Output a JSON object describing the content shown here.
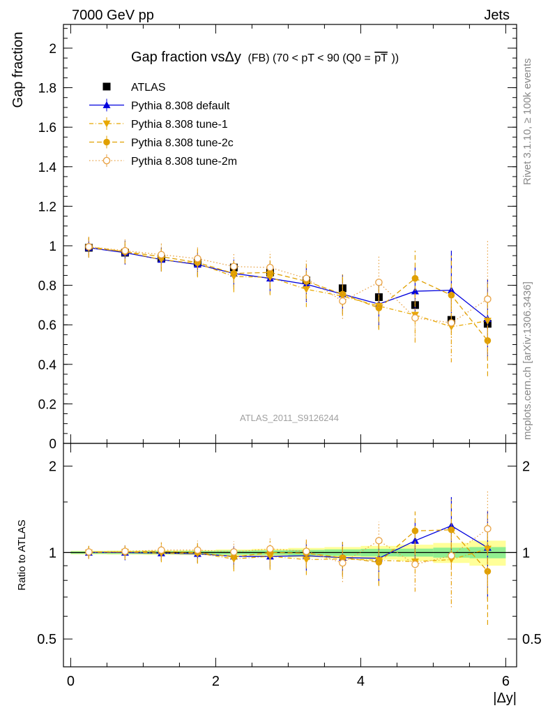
{
  "header": {
    "energy_label": "7000 GeV pp",
    "process_label": "Jets"
  },
  "side_labels": {
    "rivet": "Rivet 3.1.10, ≥ 100k events",
    "mcplots": "mcplots.cern.ch [arXiv:1306.3436]"
  },
  "watermark": "ATLAS_2011_S9126244",
  "chart_data": [
    {
      "type": "scatter",
      "panel": "main",
      "title": "Gap fraction vsΔy",
      "title_suffix": "(FB) (70 < pT <  90 (Q0 =",
      "title_overlined": "pT",
      "title_close": "))",
      "ylabel": "Gap fraction",
      "xlim": [
        -0.1,
        6.15
      ],
      "ylim": [
        0,
        2.12
      ],
      "yticks": [
        "0",
        "0.2",
        "0.4",
        "0.6",
        "0.8",
        "1",
        "1.2",
        "1.4",
        "1.6",
        "1.8",
        "2"
      ],
      "x": [
        0.25,
        0.75,
        1.25,
        1.75,
        2.25,
        2.75,
        3.25,
        3.75,
        4.25,
        4.75,
        5.25,
        5.75
      ],
      "series": [
        {
          "name": "ATLAS",
          "color": "#000000",
          "marker": "square",
          "values": [
            0.99,
            0.965,
            0.935,
            0.915,
            0.89,
            0.865,
            0.825,
            0.785,
            0.74,
            0.7,
            0.625,
            0.605
          ],
          "errors": [
            0.01,
            0.01,
            0.01,
            0.012,
            0.014,
            0.016,
            0.018,
            0.02,
            0.02,
            0.022,
            0.022,
            0.025
          ]
        },
        {
          "name": "Pythia 8.308 default",
          "color": "#0000dd",
          "marker": "triangle-up",
          "line": "solid",
          "values": [
            0.99,
            0.965,
            0.93,
            0.905,
            0.86,
            0.835,
            0.805,
            0.755,
            0.705,
            0.77,
            0.775,
            0.63
          ],
          "errors": [
            0.05,
            0.06,
            0.06,
            0.06,
            0.07,
            0.08,
            0.09,
            0.1,
            0.12,
            0.12,
            0.2,
            0.2
          ]
        },
        {
          "name": "Pythia 8.308 tune-1",
          "color": "#e8a800",
          "marker": "triangle-down",
          "line": "dashdot",
          "values": [
            0.99,
            0.97,
            0.93,
            0.91,
            0.845,
            0.84,
            0.78,
            0.745,
            0.695,
            0.65,
            0.59,
            0.62
          ],
          "errors": [
            0.05,
            0.06,
            0.06,
            0.07,
            0.08,
            0.09,
            0.09,
            0.1,
            0.12,
            0.14,
            0.18,
            0.2
          ]
        },
        {
          "name": "Pythia 8.308 tune-2c",
          "color": "#e0a000",
          "marker": "circle",
          "line": "dashed",
          "values": [
            0.995,
            0.97,
            0.945,
            0.915,
            0.86,
            0.865,
            0.82,
            0.755,
            0.685,
            0.835,
            0.75,
            0.52
          ],
          "errors": [
            0.05,
            0.06,
            0.06,
            0.07,
            0.08,
            0.08,
            0.09,
            0.1,
            0.11,
            0.14,
            0.2,
            0.18
          ]
        },
        {
          "name": "Pythia 8.308 tune-2m",
          "color": "#e8a040",
          "marker": "circle-open",
          "line": "dotted",
          "values": [
            0.995,
            0.975,
            0.955,
            0.935,
            0.895,
            0.89,
            0.835,
            0.72,
            0.815,
            0.635,
            0.61,
            0.73
          ],
          "errors": [
            0.05,
            0.06,
            0.06,
            0.06,
            0.07,
            0.08,
            0.09,
            0.09,
            0.13,
            0.12,
            0.2,
            0.3
          ]
        }
      ]
    },
    {
      "type": "scatter",
      "panel": "ratio",
      "ylabel": "Ratio to ATLAS",
      "xlabel": "|Δy|",
      "yscale": "log",
      "ylim": [
        0.4,
        2.4
      ],
      "yticks": [
        "0.5",
        "1",
        "2"
      ],
      "xlim": [
        -0.1,
        6.15
      ],
      "xticks": [
        "0",
        "2",
        "4",
        "6"
      ],
      "x": [
        0.25,
        0.75,
        1.25,
        1.75,
        2.25,
        2.75,
        3.25,
        3.75,
        4.25,
        4.75,
        5.25,
        5.75
      ],
      "band_inner": [
        0.01,
        0.011,
        0.012,
        0.013,
        0.016,
        0.018,
        0.022,
        0.026,
        0.03,
        0.032,
        0.04,
        0.045
      ],
      "band_outer": [
        0.014,
        0.016,
        0.018,
        0.02,
        0.025,
        0.03,
        0.038,
        0.045,
        0.055,
        0.065,
        0.08,
        0.1
      ],
      "series": [
        {
          "name": "Pythia 8.308 default",
          "color": "#0000dd",
          "marker": "triangle-up",
          "line": "solid",
          "values": [
            1.0,
            1.0,
            0.995,
            0.99,
            0.97,
            0.97,
            0.975,
            0.96,
            0.955,
            1.1,
            1.24,
            1.04
          ],
          "errors": [
            0.05,
            0.06,
            0.06,
            0.07,
            0.08,
            0.09,
            0.11,
            0.13,
            0.16,
            0.18,
            0.32,
            0.35
          ]
        },
        {
          "name": "Pythia 8.308 tune-1",
          "color": "#e8a800",
          "marker": "triangle-down",
          "line": "dashdot",
          "values": [
            1.0,
            1.005,
            0.995,
            0.995,
            0.95,
            0.97,
            0.945,
            0.95,
            0.94,
            0.93,
            0.945,
            1.03
          ],
          "errors": [
            0.05,
            0.06,
            0.07,
            0.08,
            0.09,
            0.1,
            0.11,
            0.13,
            0.17,
            0.2,
            0.28,
            0.35
          ]
        },
        {
          "name": "Pythia 8.308 tune-2c",
          "color": "#e0a000",
          "marker": "circle",
          "line": "dashed",
          "values": [
            1.005,
            1.005,
            1.01,
            1.0,
            0.965,
            1.0,
            0.995,
            0.96,
            0.925,
            1.19,
            1.2,
            0.86
          ],
          "errors": [
            0.05,
            0.06,
            0.07,
            0.08,
            0.09,
            0.1,
            0.11,
            0.13,
            0.16,
            0.2,
            0.33,
            0.3
          ]
        },
        {
          "name": "Pythia 8.308 tune-2m",
          "color": "#e8a040",
          "marker": "circle-open",
          "line": "dotted",
          "values": [
            1.005,
            1.01,
            1.02,
            1.02,
            1.005,
            1.03,
            1.01,
            0.92,
            1.1,
            0.91,
            0.975,
            1.21
          ],
          "errors": [
            0.05,
            0.06,
            0.07,
            0.08,
            0.09,
            0.1,
            0.11,
            0.13,
            0.18,
            0.18,
            0.33,
            0.45
          ]
        }
      ]
    }
  ]
}
